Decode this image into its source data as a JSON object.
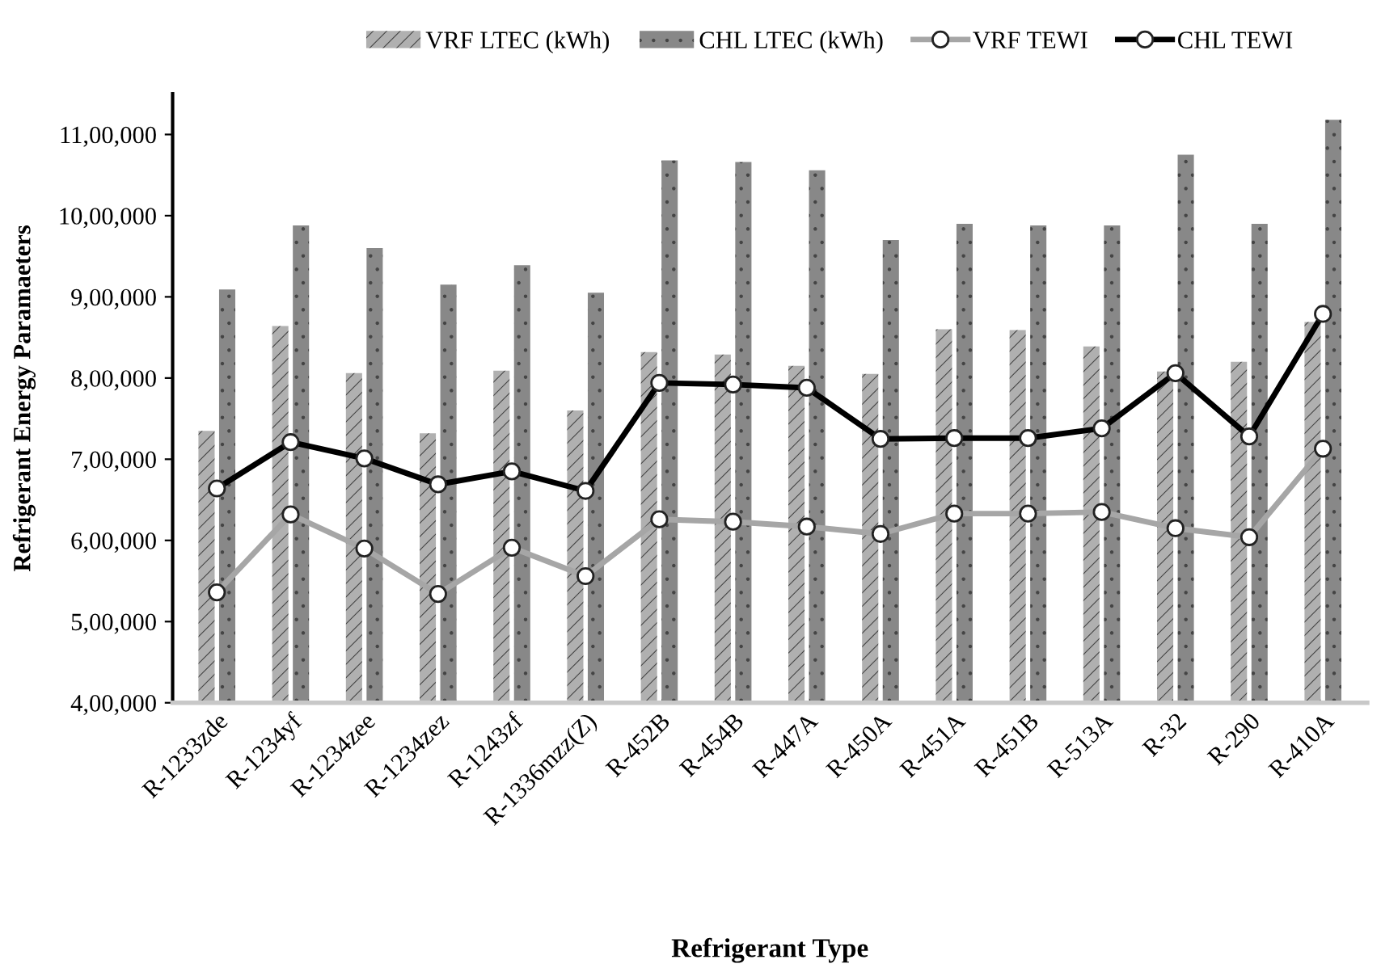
{
  "chart_data": {
    "type": "bar",
    "xlabel": "Refrigerant Type",
    "ylabel": "Refrigerant Energy Paramaeters",
    "categories": [
      "R-1233zde",
      "R-1234yf",
      "R-1234zee",
      "R-1234zez",
      "R-1243zf",
      "R-1336mzz(Z)",
      "R-452B",
      "R-454B",
      "R-447A",
      "R-450A",
      "R-451A",
      "R-451B",
      "R-513A",
      "R-32",
      "R-290",
      "R-410A"
    ],
    "series": [
      {
        "name": "VRF LTEC (kWh)",
        "color": "#b0b0b0",
        "values": [
          735000,
          864000,
          806000,
          732000,
          809000,
          760000,
          832000,
          829000,
          815000,
          805000,
          860000,
          859000,
          839000,
          808000,
          820000,
          869000
        ]
      },
      {
        "name": "CHL LTEC (kWh)",
        "color": "#888888",
        "values": [
          909000,
          988000,
          960000,
          915000,
          939000,
          905000,
          1068000,
          1066000,
          1056000,
          970000,
          990000,
          988000,
          988000,
          1075000,
          990000,
          1118000
        ]
      },
      {
        "name": "VRF TEWI",
        "type": "line",
        "color": "#a6a6a6",
        "values": [
          536000,
          632000,
          590000,
          534000,
          591000,
          556000,
          626000,
          623000,
          617000,
          608000,
          633000,
          633000,
          635000,
          615000,
          604000,
          713000
        ]
      },
      {
        "name": "CHL TEWI",
        "type": "line",
        "color": "#000000",
        "values": [
          664000,
          721000,
          701000,
          669000,
          685000,
          661000,
          794000,
          792000,
          788000,
          725000,
          726000,
          726000,
          738000,
          806000,
          728000,
          879000
        ]
      }
    ],
    "ylim": [
      400000,
      1150000
    ],
    "yticks": [
      {
        "value": 400000,
        "label": "4,00,000"
      },
      {
        "value": 500000,
        "label": "5,00,000"
      },
      {
        "value": 600000,
        "label": "6,00,000"
      },
      {
        "value": 700000,
        "label": "7,00,000"
      },
      {
        "value": 800000,
        "label": "8,00,000"
      },
      {
        "value": 900000,
        "label": "9,00,000"
      },
      {
        "value": 1000000,
        "label": "10,00,000"
      },
      {
        "value": 1100000,
        "label": "11,00,000"
      }
    ],
    "grid": false,
    "legend": "top",
    "marker": "circle",
    "line_style": "solid"
  }
}
